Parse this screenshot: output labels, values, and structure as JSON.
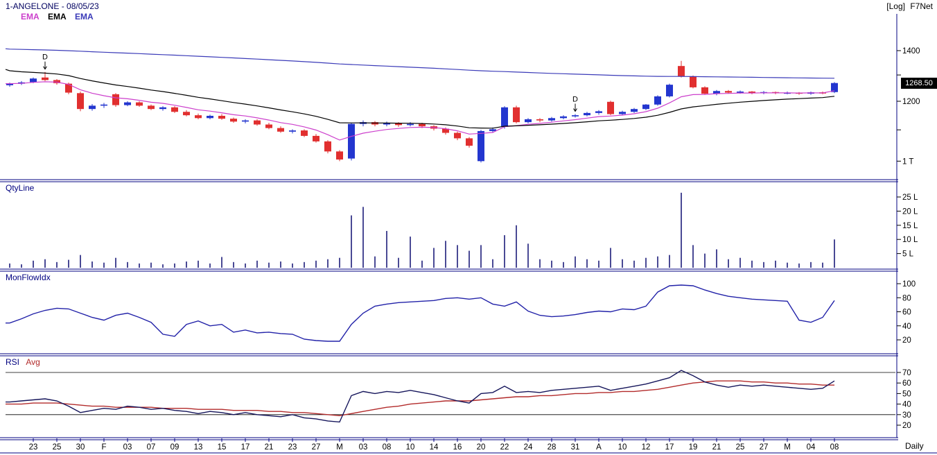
{
  "header": {
    "title": "1-ANGELONE - 08/05/23",
    "scale_tag": "[Log]",
    "brand": "F7Net"
  },
  "footer": {
    "timeframe": "Daily"
  },
  "chart_data": {
    "type": "candlestick-multi-panel",
    "scale": "log",
    "timeframe": "Daily",
    "x_labels": [
      "",
      "",
      "23",
      "",
      "25",
      "",
      "30",
      "",
      "F",
      "",
      "03",
      "",
      "07",
      "",
      "09",
      "",
      "13",
      "",
      "15",
      "",
      "17",
      "",
      "21",
      "",
      "23",
      "",
      "27",
      "",
      "M",
      "",
      "03",
      "",
      "08",
      "",
      "10",
      "",
      "14",
      "",
      "16",
      "",
      "20",
      "",
      "22",
      "",
      "24",
      "",
      "28",
      "",
      "31",
      "",
      "A",
      "",
      "10",
      "",
      "12",
      "",
      "17",
      "",
      "19",
      "",
      "21",
      "",
      "25",
      "",
      "27",
      "",
      "M",
      "",
      "04",
      "",
      "08"
    ],
    "panels": [
      {
        "id": "price",
        "type": "candlestick",
        "up_color": "#2336cf",
        "down_color": "#e12f2f",
        "open": [
          1260,
          1266,
          1272,
          1290,
          1280,
          1266,
          1230,
          1172,
          1184,
          1226,
          1186,
          1196,
          1184,
          1172,
          1178,
          1162,
          1150,
          1140,
          1148,
          1138,
          1128,
          1132,
          1118,
          1106,
          1094,
          1098,
          1080,
          1062,
          1030,
          1008,
          1120,
          1126,
          1118,
          1122,
          1116,
          1120,
          1112,
          1104,
          1090,
          1072,
          1000,
          1096,
          1110,
          1178,
          1126,
          1136,
          1132,
          1140,
          1146,
          1150,
          1158,
          1198,
          1154,
          1162,
          1172,
          1188,
          1218,
          1336,
          1295,
          1252,
          1228,
          1238,
          1232,
          1236,
          1230,
          1234,
          1230,
          1232,
          1228,
          1233,
          1234
        ],
        "high": [
          1270,
          1276,
          1290,
          1312,
          1284,
          1270,
          1236,
          1190,
          1194,
          1230,
          1200,
          1200,
          1188,
          1182,
          1182,
          1168,
          1156,
          1152,
          1154,
          1142,
          1136,
          1136,
          1124,
          1112,
          1102,
          1102,
          1086,
          1066,
          1034,
          1124,
          1132,
          1130,
          1128,
          1126,
          1126,
          1124,
          1116,
          1108,
          1094,
          1076,
          1100,
          1108,
          1182,
          1184,
          1140,
          1140,
          1144,
          1150,
          1154,
          1162,
          1168,
          1202,
          1166,
          1176,
          1190,
          1222,
          1266,
          1357,
          1298,
          1256,
          1242,
          1242,
          1240,
          1238,
          1238,
          1236,
          1236,
          1234,
          1236,
          1236,
          1272
        ],
        "low": [
          1254,
          1261,
          1268,
          1276,
          1262,
          1226,
          1164,
          1166,
          1176,
          1180,
          1182,
          1180,
          1168,
          1166,
          1158,
          1146,
          1136,
          1136,
          1134,
          1124,
          1122,
          1114,
          1102,
          1090,
          1088,
          1076,
          1058,
          1024,
          1000,
          1002,
          1112,
          1112,
          1112,
          1110,
          1112,
          1106,
          1098,
          1084,
          1066,
          1042,
          996,
          1092,
          1104,
          1122,
          1122,
          1126,
          1128,
          1136,
          1142,
          1146,
          1152,
          1150,
          1150,
          1158,
          1168,
          1184,
          1214,
          1290,
          1248,
          1224,
          1222,
          1228,
          1228,
          1226,
          1226,
          1226,
          1226,
          1224,
          1224,
          1226,
          1230
        ],
        "close": [
          1266,
          1271,
          1286,
          1280,
          1268,
          1232,
          1172,
          1184,
          1188,
          1186,
          1196,
          1184,
          1172,
          1178,
          1162,
          1150,
          1140,
          1148,
          1138,
          1128,
          1132,
          1118,
          1106,
          1094,
          1098,
          1080,
          1062,
          1030,
          1005,
          1120,
          1126,
          1118,
          1122,
          1116,
          1120,
          1112,
          1104,
          1090,
          1072,
          1048,
          1096,
          1102,
          1178,
          1126,
          1136,
          1132,
          1140,
          1146,
          1150,
          1158,
          1164,
          1154,
          1162,
          1172,
          1188,
          1218,
          1262,
          1295,
          1252,
          1228,
          1238,
          1232,
          1236,
          1230,
          1234,
          1230,
          1232,
          1228,
          1233,
          1230,
          1268.5
        ],
        "overlays": [
          {
            "name": "EMA",
            "color": "#cc3fcc",
            "period": 8,
            "seed": 1266
          },
          {
            "name": "EMA",
            "color": "#000000",
            "period": 21,
            "seed": 1322
          },
          {
            "name": "EMA",
            "color": "#3a3ab8",
            "period": 200,
            "seed": 1408
          }
        ],
        "events": [
          {
            "index": 4,
            "label": "D"
          },
          {
            "index": 49,
            "label": "D"
          }
        ],
        "axis": {
          "ticks": [
            {
              "value": 1400,
              "text": "1400"
            },
            {
              "value": 1300,
              "text": ""
            },
            {
              "value": 1200,
              "text": "1200"
            },
            {
              "value": 1100,
              "text": ""
            },
            {
              "value": 1000,
              "text": "1 T"
            }
          ],
          "last_value": 1268.5,
          "last_text": "1268.50"
        }
      },
      {
        "id": "volume",
        "type": "bar",
        "label": "QtyLine",
        "color": "#1b1b7a",
        "unit": "L",
        "values": [
          1.5,
          1.2,
          2.5,
          3,
          2,
          2.8,
          4.5,
          2.2,
          1.8,
          3.5,
          2,
          1.5,
          1.8,
          1.2,
          1.5,
          2.2,
          2.5,
          1.5,
          3.8,
          2,
          1.5,
          2.5,
          1.8,
          2.2,
          1.5,
          2,
          2.5,
          3,
          3.5,
          18.5,
          21.5,
          4,
          13,
          3.5,
          11,
          2.5,
          7,
          9.5,
          8,
          6,
          8,
          3,
          11.5,
          15,
          8.5,
          3,
          2.5,
          2,
          4,
          3,
          2.5,
          7,
          3,
          2.5,
          3.5,
          4,
          4.5,
          26.5,
          8,
          5,
          6.5,
          3,
          3.5,
          2.5,
          2,
          2.5,
          1.8,
          1.5,
          2,
          1.8,
          10
        ],
        "axis": {
          "ticks": [
            {
              "value": 25,
              "text": "25 L"
            },
            {
              "value": 20,
              "text": "20 L"
            },
            {
              "value": 15,
              "text": "15 L"
            },
            {
              "value": 10,
              "text": "10 L"
            },
            {
              "value": 5,
              "text": "5 L"
            }
          ]
        }
      },
      {
        "id": "mfi",
        "type": "line",
        "label": "MonFlowIdx",
        "color": "#2121a8",
        "values": [
          44,
          50,
          57,
          62,
          65,
          64,
          58,
          52,
          48,
          55,
          58,
          52,
          45,
          28,
          25,
          42,
          47,
          40,
          42,
          31,
          34,
          30,
          31,
          29,
          28,
          21,
          19,
          18,
          18,
          42,
          58,
          68,
          71,
          73,
          74,
          75,
          76,
          79,
          80,
          78,
          80,
          71,
          68,
          74,
          61,
          55,
          53,
          54,
          56,
          59,
          61,
          60,
          64,
          63,
          68,
          88,
          97,
          98,
          97,
          91,
          86,
          82,
          80,
          78,
          77,
          76,
          75,
          48,
          45,
          52,
          76
        ],
        "axis": {
          "ticks": [
            {
              "value": 100,
              "text": "100"
            },
            {
              "value": 80,
              "text": "80"
            },
            {
              "value": 60,
              "text": "60"
            },
            {
              "value": 40,
              "text": "40"
            },
            {
              "value": 20,
              "text": "20"
            }
          ]
        }
      },
      {
        "id": "rsi",
        "type": "line",
        "label": "RSI",
        "avg_label": "Avg",
        "color": "#14145a",
        "avg_color": "#b22a2a",
        "ref_lines": [
          70,
          30
        ],
        "values": [
          42,
          43,
          44,
          45,
          43,
          38,
          32,
          34,
          36,
          35,
          38,
          37,
          35,
          36,
          34,
          33,
          31,
          33,
          32,
          30,
          32,
          30,
          29,
          28,
          30,
          27,
          26,
          24,
          23,
          48,
          52,
          50,
          52,
          51,
          53,
          51,
          49,
          46,
          43,
          41,
          50,
          51,
          57,
          51,
          52,
          51,
          53,
          54,
          55,
          56,
          57,
          53,
          55,
          57,
          59,
          62,
          65,
          72,
          67,
          61,
          58,
          56,
          58,
          57,
          58,
          57,
          56,
          55,
          54,
          55,
          62
        ],
        "avg_values": [
          40,
          40,
          41,
          41,
          41,
          40,
          39,
          38,
          38,
          37,
          37,
          37,
          37,
          36,
          36,
          36,
          35,
          35,
          35,
          34,
          34,
          34,
          33,
          33,
          32,
          32,
          31,
          30,
          29,
          31,
          33,
          35,
          37,
          38,
          40,
          41,
          42,
          43,
          43,
          43,
          44,
          45,
          46,
          47,
          47,
          48,
          48,
          49,
          50,
          50,
          51,
          51,
          52,
          52,
          53,
          54,
          56,
          58,
          60,
          61,
          62,
          62,
          62,
          61,
          61,
          60,
          60,
          59,
          59,
          58,
          58
        ],
        "axis": {
          "ticks": [
            {
              "value": 70,
              "text": "70"
            },
            {
              "value": 60,
              "text": "60"
            },
            {
              "value": 50,
              "text": "50"
            },
            {
              "value": 40,
              "text": "40"
            },
            {
              "value": 30,
              "text": "30"
            },
            {
              "value": 20,
              "text": "20"
            }
          ]
        }
      }
    ]
  }
}
